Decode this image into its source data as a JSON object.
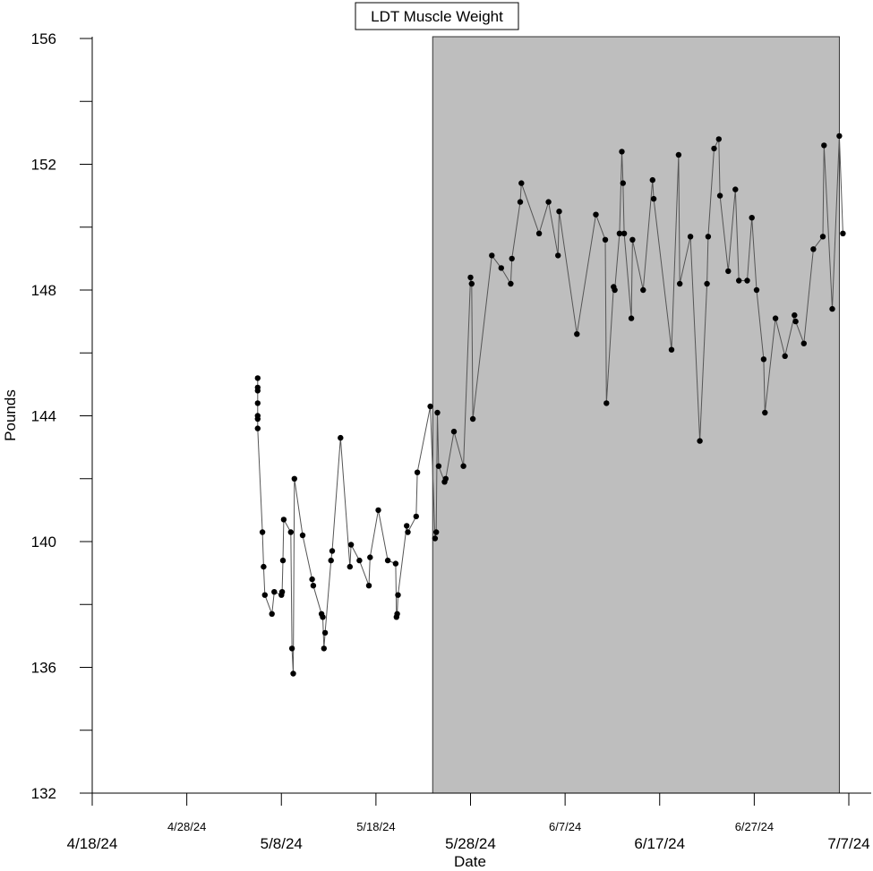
{
  "chart_data": {
    "type": "line",
    "title": "LDT Muscle Weight",
    "xlabel": "Date",
    "ylabel": "Pounds",
    "ylim": [
      132,
      156
    ],
    "y_ticks": [
      132,
      136,
      140,
      144,
      148,
      152,
      156
    ],
    "xlim": [
      "2024-04-18",
      "2024-07-07"
    ],
    "x_ticks": [
      {
        "label": "4/18/24",
        "date": "2024-04-18",
        "major": true
      },
      {
        "label": "4/28/24",
        "date": "2024-04-28",
        "major": false
      },
      {
        "label": "5/8/24",
        "date": "2024-05-08",
        "major": true
      },
      {
        "label": "5/18/24",
        "date": "2024-05-18",
        "major": false
      },
      {
        "label": "5/28/24",
        "date": "2024-05-28",
        "major": true
      },
      {
        "label": "6/7/24",
        "date": "2024-06-07",
        "major": false
      },
      {
        "label": "6/17/24",
        "date": "2024-06-17",
        "major": true
      },
      {
        "label": "6/27/24",
        "date": "2024-06-27",
        "major": false
      },
      {
        "label": "7/7/24",
        "date": "2024-07-07",
        "major": true
      }
    ],
    "shaded_region": {
      "start": "2024-05-24",
      "end": "2024-07-06",
      "color": "#bebebe"
    },
    "grid": false,
    "line_color": "#555555",
    "marker_color": "#000000",
    "series": [
      {
        "points": [
          {
            "x": "2024-05-05 12:00",
            "y": 145.2
          },
          {
            "x": "2024-05-05 12:00",
            "y": 144.9
          },
          {
            "x": "2024-05-05 12:00",
            "y": 144.8
          },
          {
            "x": "2024-05-05 12:00",
            "y": 144.4
          },
          {
            "x": "2024-05-05 12:00",
            "y": 144.0
          },
          {
            "x": "2024-05-05 12:00",
            "y": 143.9
          },
          {
            "x": "2024-05-05 12:00",
            "y": 143.6
          },
          {
            "x": "2024-05-06 00:00",
            "y": 140.3
          },
          {
            "x": "2024-05-06 03:00",
            "y": 139.2
          },
          {
            "x": "2024-05-06 06:00",
            "y": 138.3
          },
          {
            "x": "2024-05-07 00:00",
            "y": 137.7
          },
          {
            "x": "2024-05-07 06:00",
            "y": 138.4
          },
          {
            "x": "2024-05-08 00:00",
            "y": 138.3
          },
          {
            "x": "2024-05-08 02:00",
            "y": 138.4
          },
          {
            "x": "2024-05-08 04:00",
            "y": 139.4
          },
          {
            "x": "2024-05-08 06:00",
            "y": 140.7
          },
          {
            "x": "2024-05-09 00:00",
            "y": 140.3
          },
          {
            "x": "2024-05-09 03:00",
            "y": 136.6
          },
          {
            "x": "2024-05-09 06:00",
            "y": 135.8
          },
          {
            "x": "2024-05-09 09:00",
            "y": 142.0
          },
          {
            "x": "2024-05-10 06:00",
            "y": 140.2
          },
          {
            "x": "2024-05-11 06:00",
            "y": 138.8
          },
          {
            "x": "2024-05-11 09:00",
            "y": 138.6
          },
          {
            "x": "2024-05-12 06:00",
            "y": 137.7
          },
          {
            "x": "2024-05-12 09:00",
            "y": 137.6
          },
          {
            "x": "2024-05-12 12:00",
            "y": 136.6
          },
          {
            "x": "2024-05-12 15:00",
            "y": 137.1
          },
          {
            "x": "2024-05-13 06:00",
            "y": 139.4
          },
          {
            "x": "2024-05-13 09:00",
            "y": 139.7
          },
          {
            "x": "2024-05-14 06:00",
            "y": 143.3
          },
          {
            "x": "2024-05-15 06:00",
            "y": 139.2
          },
          {
            "x": "2024-05-15 09:00",
            "y": 139.9
          },
          {
            "x": "2024-05-16 06:00",
            "y": 139.4
          },
          {
            "x": "2024-05-17 06:00",
            "y": 138.6
          },
          {
            "x": "2024-05-17 09:00",
            "y": 139.5
          },
          {
            "x": "2024-05-18 06:00",
            "y": 141.0
          },
          {
            "x": "2024-05-19 06:00",
            "y": 139.4
          },
          {
            "x": "2024-05-20 02:00",
            "y": 139.3
          },
          {
            "x": "2024-05-20 04:00",
            "y": 137.6
          },
          {
            "x": "2024-05-20 06:00",
            "y": 137.7
          },
          {
            "x": "2024-05-20 08:00",
            "y": 138.3
          },
          {
            "x": "2024-05-21 06:00",
            "y": 140.5
          },
          {
            "x": "2024-05-21 09:00",
            "y": 140.3
          },
          {
            "x": "2024-05-22 06:00",
            "y": 140.8
          },
          {
            "x": "2024-05-22 09:00",
            "y": 142.2
          },
          {
            "x": "2024-05-23 18:00",
            "y": 144.3
          },
          {
            "x": "2024-05-24 06:00",
            "y": 140.1
          },
          {
            "x": "2024-05-24 09:00",
            "y": 140.3
          },
          {
            "x": "2024-05-24 12:00",
            "y": 144.1
          },
          {
            "x": "2024-05-24 15:00",
            "y": 142.4
          },
          {
            "x": "2024-05-25 06:00",
            "y": 141.9
          },
          {
            "x": "2024-05-25 09:00",
            "y": 142.0
          },
          {
            "x": "2024-05-26 06:00",
            "y": 143.5
          },
          {
            "x": "2024-05-27 06:00",
            "y": 142.4
          },
          {
            "x": "2024-05-28 00:00",
            "y": 148.4
          },
          {
            "x": "2024-05-28 03:00",
            "y": 148.2
          },
          {
            "x": "2024-05-28 06:00",
            "y": 143.9
          },
          {
            "x": "2024-05-30 06:00",
            "y": 149.1
          },
          {
            "x": "2024-05-31 06:00",
            "y": 148.7
          },
          {
            "x": "2024-06-01 06:00",
            "y": 148.2
          },
          {
            "x": "2024-06-01 09:00",
            "y": 149.0
          },
          {
            "x": "2024-06-02 06:00",
            "y": 150.8
          },
          {
            "x": "2024-06-02 09:00",
            "y": 151.4
          },
          {
            "x": "2024-06-04 06:00",
            "y": 149.8
          },
          {
            "x": "2024-06-05 06:00",
            "y": 150.8
          },
          {
            "x": "2024-06-06 06:00",
            "y": 149.1
          },
          {
            "x": "2024-06-06 09:00",
            "y": 150.5
          },
          {
            "x": "2024-06-08 06:00",
            "y": 146.6
          },
          {
            "x": "2024-06-10 06:00",
            "y": 150.4
          },
          {
            "x": "2024-06-11 06:00",
            "y": 149.6
          },
          {
            "x": "2024-06-11 09:00",
            "y": 144.4
          },
          {
            "x": "2024-06-12 03:00",
            "y": 148.1
          },
          {
            "x": "2024-06-12 06:00",
            "y": 148.0
          },
          {
            "x": "2024-06-12 18:00",
            "y": 149.8
          },
          {
            "x": "2024-06-13 00:00",
            "y": 152.4
          },
          {
            "x": "2024-06-13 03:00",
            "y": 151.4
          },
          {
            "x": "2024-06-13 06:00",
            "y": 149.8
          },
          {
            "x": "2024-06-14 00:00",
            "y": 147.1
          },
          {
            "x": "2024-06-14 03:00",
            "y": 149.6
          },
          {
            "x": "2024-06-15 06:00",
            "y": 148.0
          },
          {
            "x": "2024-06-16 06:00",
            "y": 151.5
          },
          {
            "x": "2024-06-16 09:00",
            "y": 150.9
          },
          {
            "x": "2024-06-18 06:00",
            "y": 146.1
          },
          {
            "x": "2024-06-19 00:00",
            "y": 152.3
          },
          {
            "x": "2024-06-19 03:00",
            "y": 148.2
          },
          {
            "x": "2024-06-20 06:00",
            "y": 149.7
          },
          {
            "x": "2024-06-21 06:00",
            "y": 143.2
          },
          {
            "x": "2024-06-22 00:00",
            "y": 148.2
          },
          {
            "x": "2024-06-22 03:00",
            "y": 149.7
          },
          {
            "x": "2024-06-22 18:00",
            "y": 152.5
          },
          {
            "x": "2024-06-23 06:00",
            "y": 152.8
          },
          {
            "x": "2024-06-23 09:00",
            "y": 151.0
          },
          {
            "x": "2024-06-24 06:00",
            "y": 148.6
          },
          {
            "x": "2024-06-25 00:00",
            "y": 151.2
          },
          {
            "x": "2024-06-25 09:00",
            "y": 148.3
          },
          {
            "x": "2024-06-26 06:00",
            "y": 148.3
          },
          {
            "x": "2024-06-26 18:00",
            "y": 150.3
          },
          {
            "x": "2024-06-27 06:00",
            "y": 148.0
          },
          {
            "x": "2024-06-28 00:00",
            "y": 145.8
          },
          {
            "x": "2024-06-28 03:00",
            "y": 144.1
          },
          {
            "x": "2024-06-29 06:00",
            "y": 147.1
          },
          {
            "x": "2024-06-30 06:00",
            "y": 145.9
          },
          {
            "x": "2024-07-01 06:00",
            "y": 147.2
          },
          {
            "x": "2024-07-01 09:00",
            "y": 147.0
          },
          {
            "x": "2024-07-02 06:00",
            "y": 146.3
          },
          {
            "x": "2024-07-03 06:00",
            "y": 149.3
          },
          {
            "x": "2024-07-04 06:00",
            "y": 149.7
          },
          {
            "x": "2024-07-04 09:00",
            "y": 152.6
          },
          {
            "x": "2024-07-05 06:00",
            "y": 147.4
          },
          {
            "x": "2024-07-06 00:00",
            "y": 152.9
          },
          {
            "x": "2024-07-06 09:00",
            "y": 149.8
          }
        ]
      }
    ]
  }
}
